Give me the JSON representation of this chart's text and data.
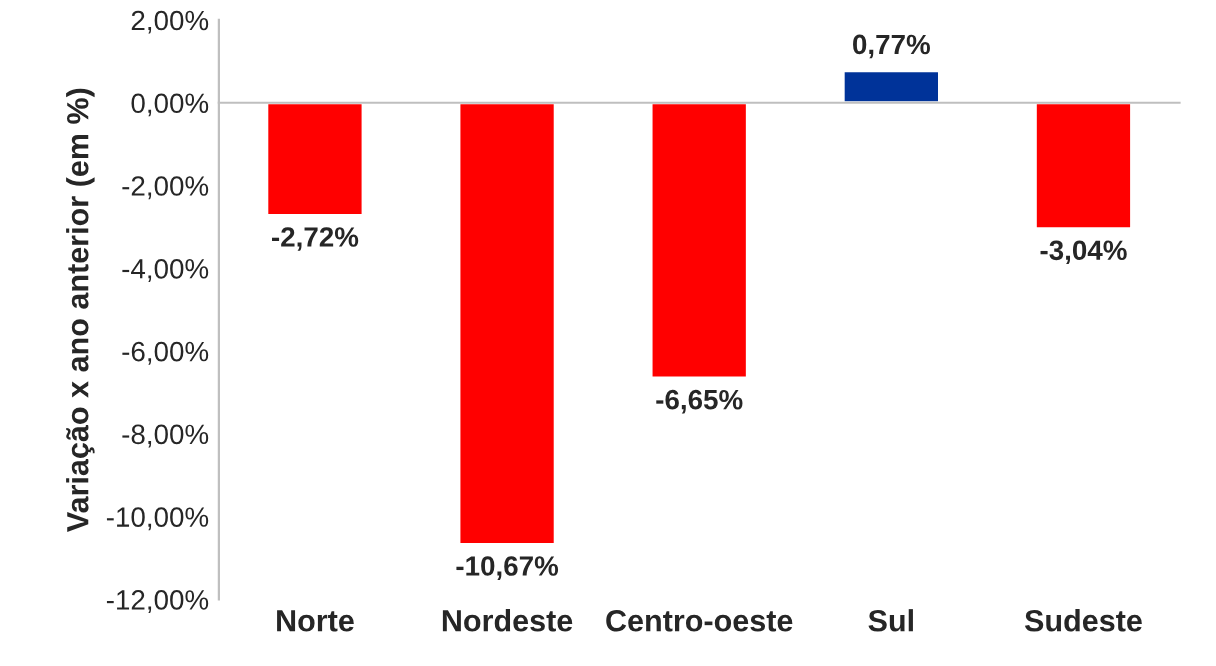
{
  "chart_data": {
    "type": "bar",
    "ylabel": "Variação x ano anterior (em %)",
    "categories": [
      "Norte",
      "Nordeste",
      "Centro-oeste",
      "Sul",
      "Sudeste"
    ],
    "values": [
      -2.72,
      -10.67,
      -6.65,
      0.77,
      -3.04
    ],
    "colors": [
      "#ff0000",
      "#ff0000",
      "#ff0000",
      "#003399",
      "#ff0000"
    ],
    "value_labels": [
      "-2,72%",
      "-10,67%",
      "-6,65%",
      "0,77%",
      "-3,04%"
    ],
    "ylim": [
      -12,
      2
    ],
    "yticks": [
      {
        "value": -12,
        "label": "-12,00%"
      },
      {
        "value": -10,
        "label": "-10,00%"
      },
      {
        "value": -8,
        "label": "-8,00%"
      },
      {
        "value": -6,
        "label": "-6,00%"
      },
      {
        "value": -4,
        "label": "-4,00%"
      },
      {
        "value": -2,
        "label": "-2,00%"
      },
      {
        "value": 0,
        "label": "0,00%"
      },
      {
        "value": 2,
        "label": "2,00%"
      }
    ],
    "legend": false
  }
}
